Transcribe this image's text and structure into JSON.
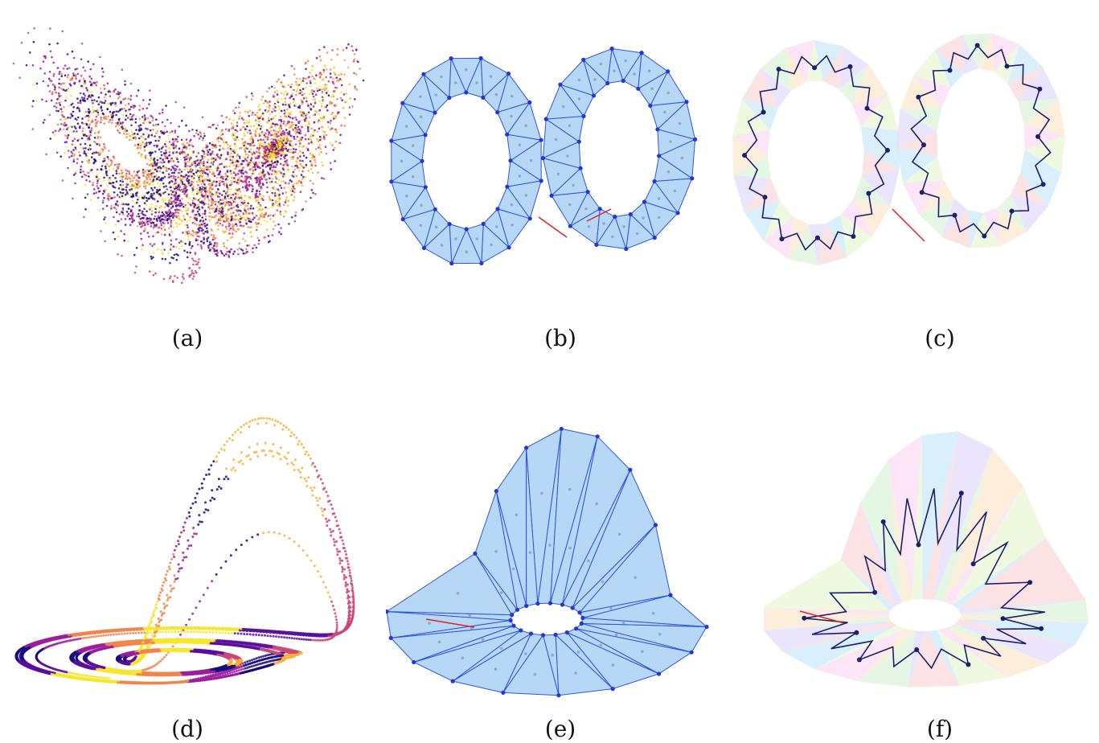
{
  "figure": {
    "panels": [
      {
        "id": "a",
        "caption": "(a)",
        "kind": "scatter",
        "shape": "butterfly"
      },
      {
        "id": "b",
        "caption": "(b)",
        "kind": "mesh",
        "shape": "butterfly"
      },
      {
        "id": "c",
        "caption": "(c)",
        "kind": "graph",
        "shape": "butterfly"
      },
      {
        "id": "d",
        "caption": "(d)",
        "kind": "scatter",
        "shape": "rossler"
      },
      {
        "id": "e",
        "caption": "(e)",
        "kind": "mesh",
        "shape": "rossler"
      },
      {
        "id": "f",
        "caption": "(f)",
        "kind": "graph",
        "shape": "rossler"
      }
    ],
    "colors": {
      "palette": [
        "#1b0c80",
        "#5b0f9c",
        "#9b1f9e",
        "#cc4778",
        "#f1844b",
        "#fbb035",
        "#f4e62b"
      ],
      "mesh_fill": "#a9d1f5",
      "mesh_edge": "#2f55e0",
      "mesh_vertex": "#2535d8",
      "graph_edge": "#1a1f6e",
      "defect_edge": "#e02020",
      "cell_palette": [
        "#cde9fb",
        "#fbd9d9",
        "#e3dcfb",
        "#dcf3dc",
        "#fbe8cf",
        "#fadcf4",
        "#e9f7d4"
      ]
    }
  }
}
